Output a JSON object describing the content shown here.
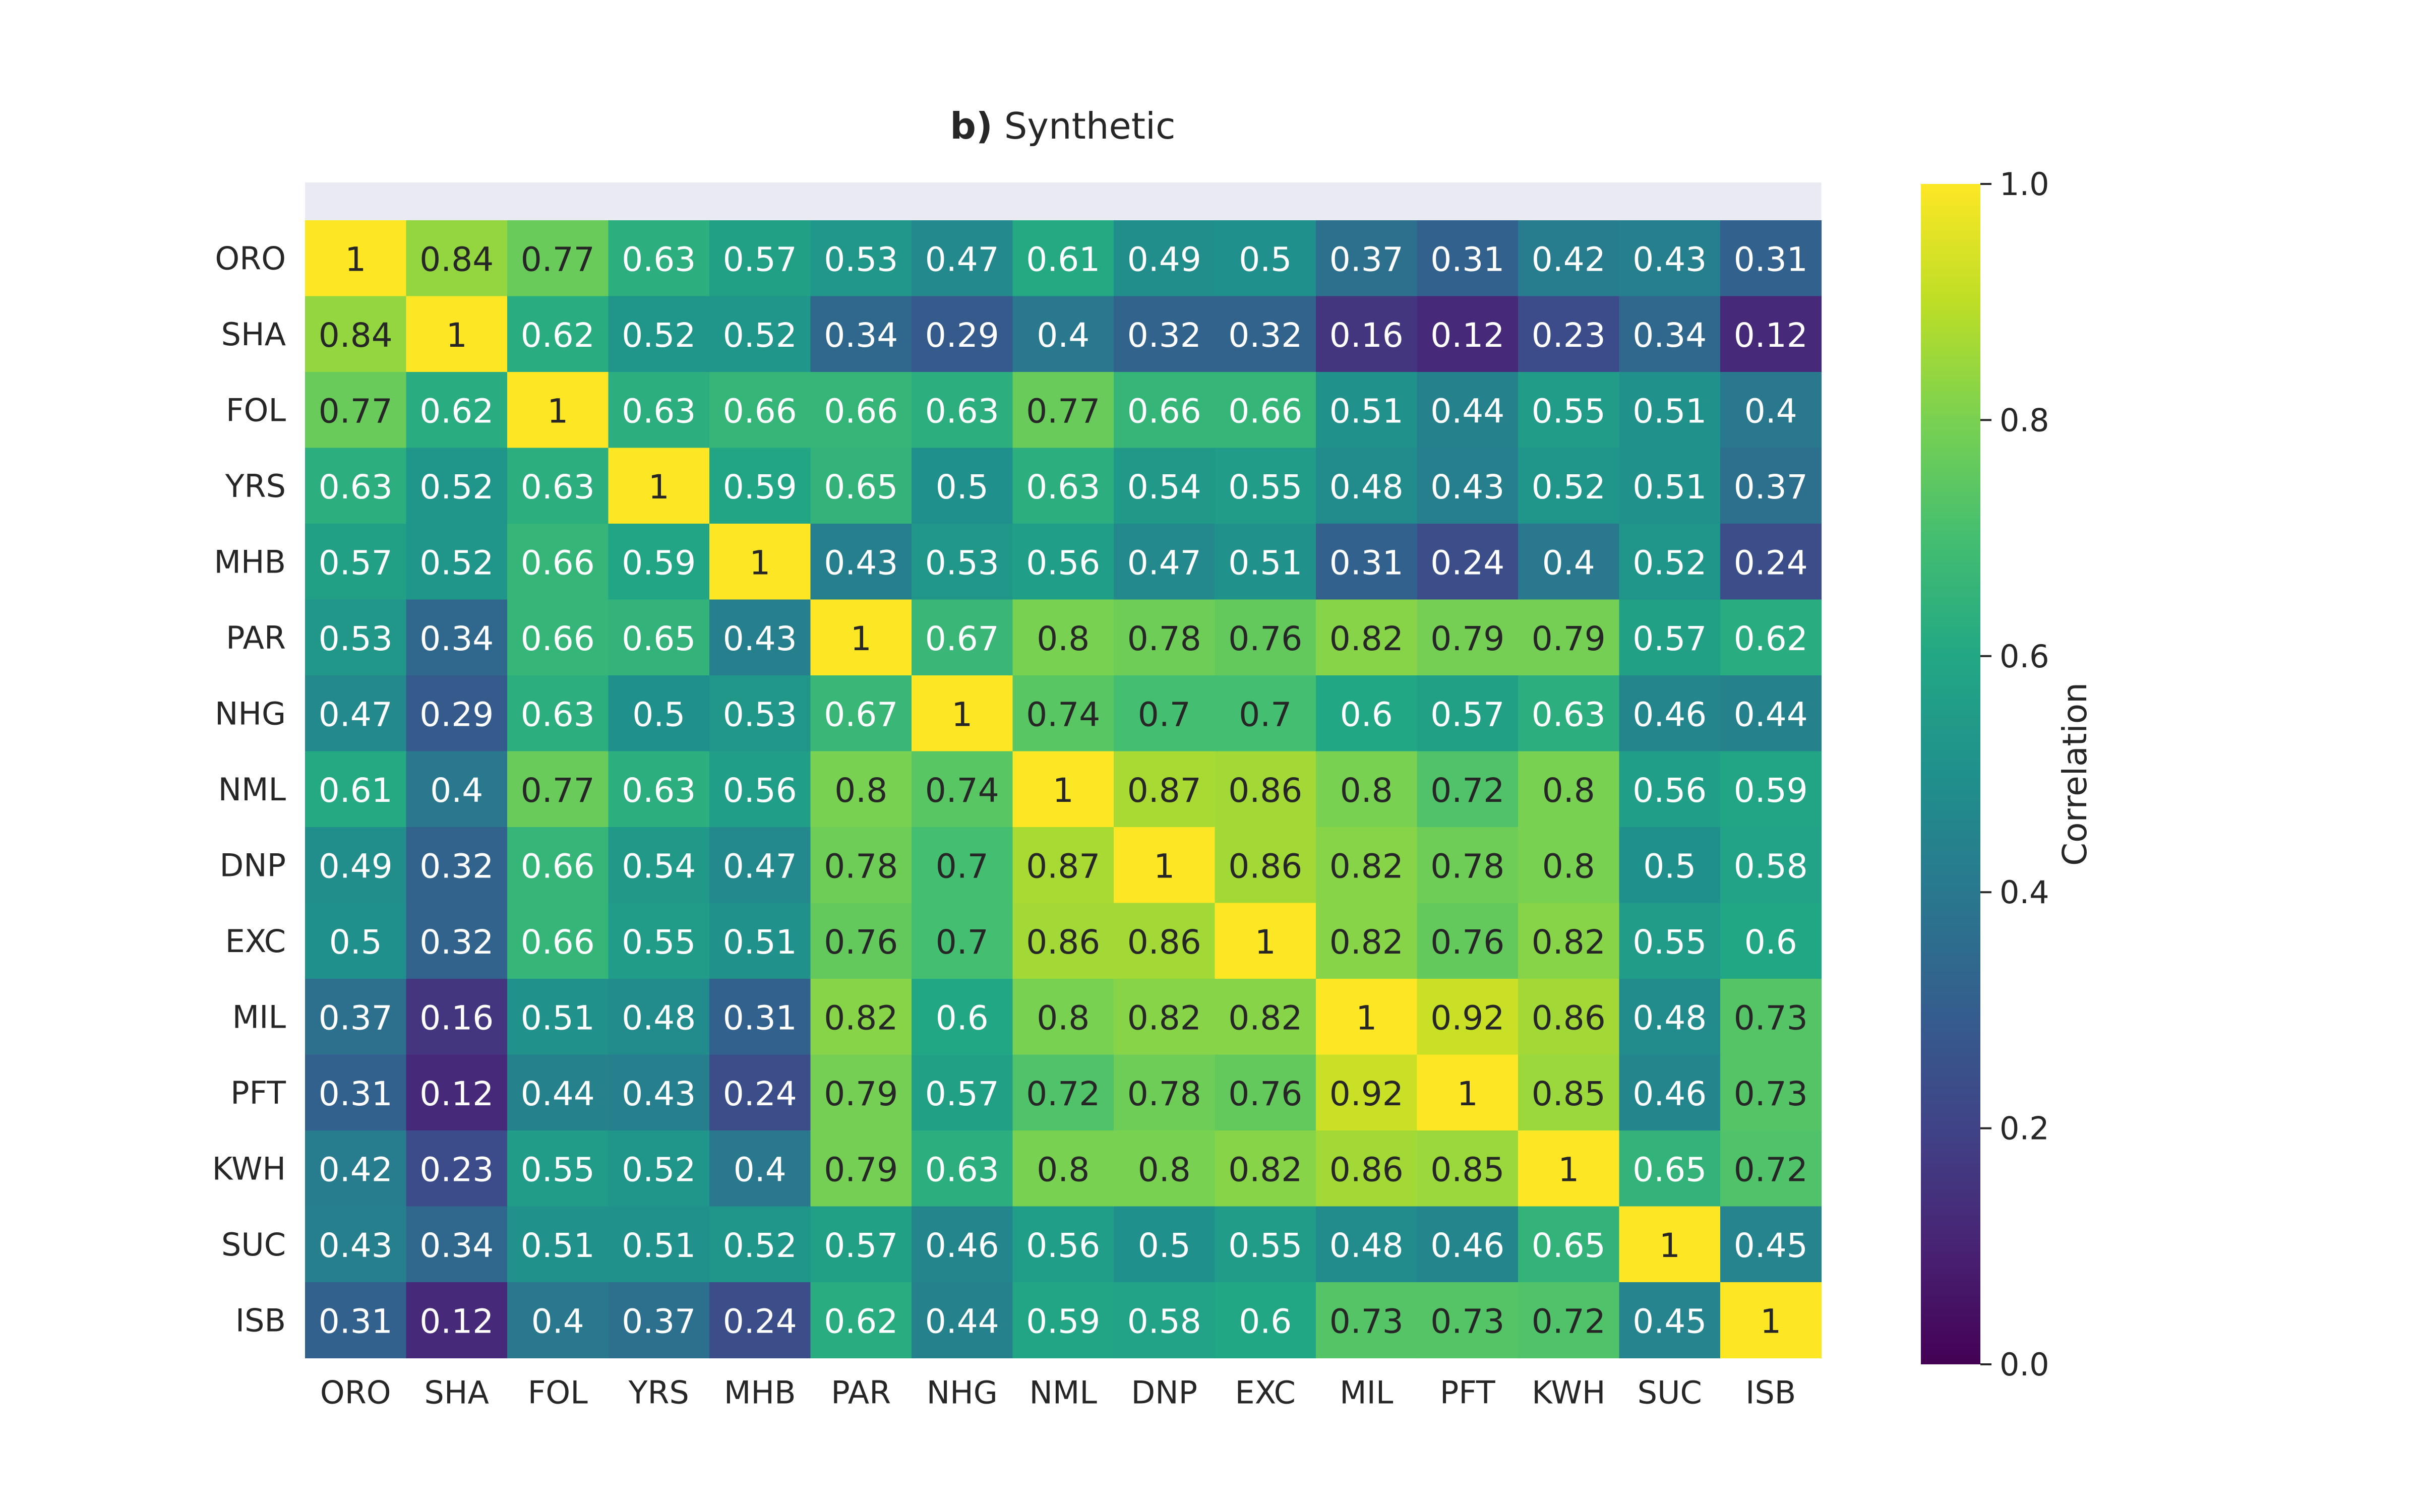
{
  "chart_data": {
    "type": "heatmap",
    "title_prefix": "b)",
    "title": "Synthetic",
    "x_labels": [
      "ORO",
      "SHA",
      "FOL",
      "YRS",
      "MHB",
      "PAR",
      "NHG",
      "NML",
      "DNP",
      "EXC",
      "MIL",
      "PFT",
      "KWH",
      "SUC",
      "ISB"
    ],
    "y_labels": [
      "ORO",
      "SHA",
      "FOL",
      "YRS",
      "MHB",
      "PAR",
      "NHG",
      "NML",
      "DNP",
      "EXC",
      "MIL",
      "PFT",
      "KWH",
      "SUC",
      "ISB"
    ],
    "values": [
      [
        1,
        0.84,
        0.77,
        0.63,
        0.57,
        0.53,
        0.47,
        0.61,
        0.49,
        0.5,
        0.37,
        0.31,
        0.42,
        0.43,
        0.31
      ],
      [
        0.84,
        1,
        0.62,
        0.52,
        0.52,
        0.34,
        0.29,
        0.4,
        0.32,
        0.32,
        0.16,
        0.12,
        0.23,
        0.34,
        0.12
      ],
      [
        0.77,
        0.62,
        1,
        0.63,
        0.66,
        0.66,
        0.63,
        0.77,
        0.66,
        0.66,
        0.51,
        0.44,
        0.55,
        0.51,
        0.4
      ],
      [
        0.63,
        0.52,
        0.63,
        1,
        0.59,
        0.65,
        0.5,
        0.63,
        0.54,
        0.55,
        0.48,
        0.43,
        0.52,
        0.51,
        0.37
      ],
      [
        0.57,
        0.52,
        0.66,
        0.59,
        1,
        0.43,
        0.53,
        0.56,
        0.47,
        0.51,
        0.31,
        0.24,
        0.4,
        0.52,
        0.24
      ],
      [
        0.53,
        0.34,
        0.66,
        0.65,
        0.43,
        1,
        0.67,
        0.8,
        0.78,
        0.76,
        0.82,
        0.79,
        0.79,
        0.57,
        0.62
      ],
      [
        0.47,
        0.29,
        0.63,
        0.5,
        0.53,
        0.67,
        1,
        0.74,
        0.7,
        0.7,
        0.6,
        0.57,
        0.63,
        0.46,
        0.44
      ],
      [
        0.61,
        0.4,
        0.77,
        0.63,
        0.56,
        0.8,
        0.74,
        1,
        0.87,
        0.86,
        0.8,
        0.72,
        0.8,
        0.56,
        0.59
      ],
      [
        0.49,
        0.32,
        0.66,
        0.54,
        0.47,
        0.78,
        0.7,
        0.87,
        1,
        0.86,
        0.82,
        0.78,
        0.8,
        0.5,
        0.58
      ],
      [
        0.5,
        0.32,
        0.66,
        0.55,
        0.51,
        0.76,
        0.7,
        0.86,
        0.86,
        1,
        0.82,
        0.76,
        0.82,
        0.55,
        0.6
      ],
      [
        0.37,
        0.16,
        0.51,
        0.48,
        0.31,
        0.82,
        0.6,
        0.8,
        0.82,
        0.82,
        1,
        0.92,
        0.86,
        0.48,
        0.73
      ],
      [
        0.31,
        0.12,
        0.44,
        0.43,
        0.24,
        0.79,
        0.57,
        0.72,
        0.78,
        0.76,
        0.92,
        1,
        0.85,
        0.46,
        0.73
      ],
      [
        0.42,
        0.23,
        0.55,
        0.52,
        0.4,
        0.79,
        0.63,
        0.8,
        0.8,
        0.82,
        0.86,
        0.85,
        1,
        0.65,
        0.72
      ],
      [
        0.43,
        0.34,
        0.51,
        0.51,
        0.52,
        0.57,
        0.46,
        0.56,
        0.5,
        0.55,
        0.48,
        0.46,
        0.65,
        1,
        0.45
      ],
      [
        0.31,
        0.12,
        0.4,
        0.37,
        0.24,
        0.62,
        0.44,
        0.59,
        0.58,
        0.6,
        0.73,
        0.73,
        0.72,
        0.45,
        1
      ]
    ],
    "colorbar": {
      "label": "Correlation",
      "range": [
        0,
        1
      ],
      "ticks": [
        0.0,
        0.2,
        0.4,
        0.6,
        0.8,
        1.0
      ],
      "tick_labels": [
        "0.0",
        "0.2",
        "0.4",
        "0.6",
        "0.8",
        "1.0"
      ],
      "colormap": "viridis"
    },
    "colors": {
      "background_band": "#eaeaf2",
      "text_dark": "#262626",
      "text_light": "#ffffff"
    }
  }
}
